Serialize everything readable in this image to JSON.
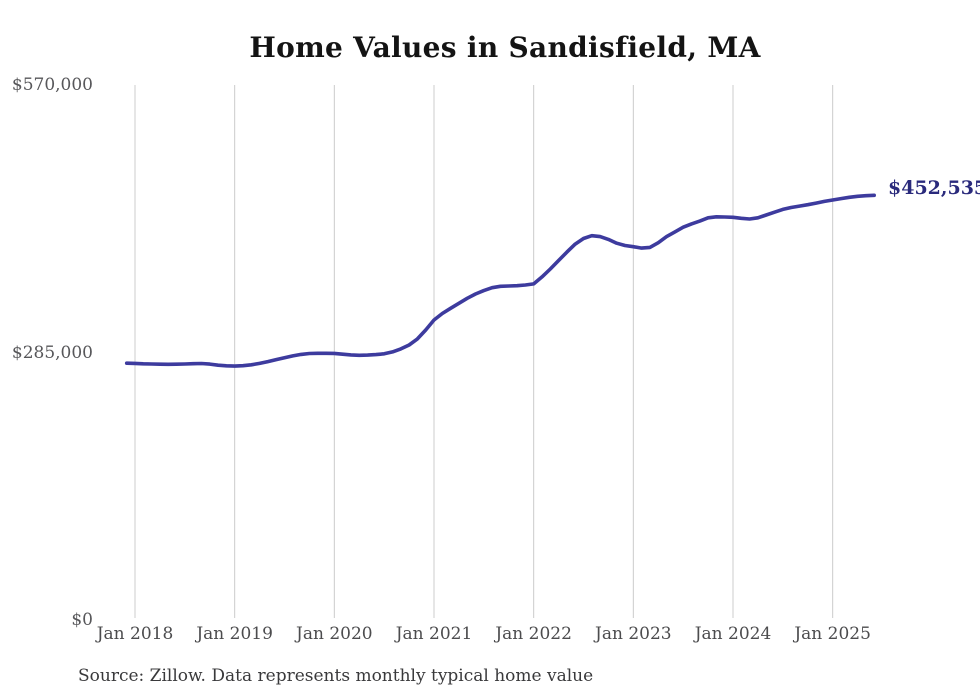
{
  "chart": {
    "title": "Home Values in Sandisfield, MA",
    "end_label": "$452,535",
    "source": "Source: Zillow. Data represents monthly typical home value",
    "colors": {
      "line": "#3d3b9e",
      "end_label_text": "#2a2a7c",
      "grid": "#cccccc",
      "y_axis_text": "#57575a",
      "x_axis_text": "#4c4c4e",
      "title_text": "#141414",
      "source_text": "#39393b",
      "background": "#ffffff"
    }
  },
  "chart_data": {
    "type": "line",
    "title": "Home Values in Sandisfield, MA",
    "xlabel": "",
    "ylabel": "",
    "x_tick_labels": [
      "Jan 2018",
      "Jan 2019",
      "Jan 2020",
      "Jan 2021",
      "Jan 2022",
      "Jan 2023",
      "Jan 2024",
      "Jan 2025"
    ],
    "y_tick_labels": [
      "$570,000",
      "$285,000",
      "$0"
    ],
    "y_tick_values": [
      570000,
      285000,
      0
    ],
    "ylim": [
      0,
      570000
    ],
    "grid": "vertical-only",
    "legend": "none",
    "latest_value": 452535,
    "latest_value_label": "$452,535",
    "series": [
      {
        "name": "Typical home value",
        "months": [
          "2017-12",
          "2018-01",
          "2018-02",
          "2018-03",
          "2018-04",
          "2018-05",
          "2018-06",
          "2018-07",
          "2018-08",
          "2018-09",
          "2018-10",
          "2018-11",
          "2018-12",
          "2019-01",
          "2019-02",
          "2019-03",
          "2019-04",
          "2019-05",
          "2019-06",
          "2019-07",
          "2019-08",
          "2019-09",
          "2019-10",
          "2019-11",
          "2019-12",
          "2020-01",
          "2020-02",
          "2020-03",
          "2020-04",
          "2020-05",
          "2020-06",
          "2020-07",
          "2020-08",
          "2020-09",
          "2020-10",
          "2020-11",
          "2020-12",
          "2021-01",
          "2021-02",
          "2021-03",
          "2021-04",
          "2021-05",
          "2021-06",
          "2021-07",
          "2021-08",
          "2021-09",
          "2021-10",
          "2021-11",
          "2021-12",
          "2022-01",
          "2022-02",
          "2022-03",
          "2022-04",
          "2022-05",
          "2022-06",
          "2022-07",
          "2022-08",
          "2022-09",
          "2022-10",
          "2022-11",
          "2022-12",
          "2023-01",
          "2023-02",
          "2023-03",
          "2023-04",
          "2023-05",
          "2023-06",
          "2023-07",
          "2023-08",
          "2023-09",
          "2023-10",
          "2023-11",
          "2023-12",
          "2024-01",
          "2024-02",
          "2024-03",
          "2024-04",
          "2024-05",
          "2024-06",
          "2024-07",
          "2024-08",
          "2024-09",
          "2024-10",
          "2024-11",
          "2024-12",
          "2025-01",
          "2025-02",
          "2025-03",
          "2025-04",
          "2025-05",
          "2025-06"
        ],
        "values": [
          273600,
          273400,
          273000,
          272700,
          272500,
          272400,
          272500,
          272800,
          273100,
          273300,
          272600,
          271500,
          270800,
          270500,
          270900,
          271900,
          273400,
          275300,
          277400,
          279500,
          281400,
          283000,
          283900,
          284200,
          284200,
          284000,
          283200,
          282400,
          282000,
          282200,
          282800,
          283600,
          285600,
          288800,
          293000,
          299500,
          309000,
          319600,
          326500,
          332100,
          337400,
          342700,
          347300,
          351000,
          354000,
          355500,
          355900,
          356200,
          356900,
          358100,
          365500,
          374000,
          383000,
          392000,
          400500,
          406500,
          409400,
          408500,
          405500,
          401500,
          399000,
          397700,
          396200,
          397000,
          402000,
          408500,
          413500,
          418500,
          422000,
          425000,
          428500,
          429600,
          429400,
          429000,
          428000,
          427200,
          428500,
          431500,
          434500,
          437500,
          439500,
          441000,
          442500,
          444200,
          446000,
          447500,
          449000,
          450400,
          451400,
          452100,
          452535
        ]
      }
    ]
  }
}
